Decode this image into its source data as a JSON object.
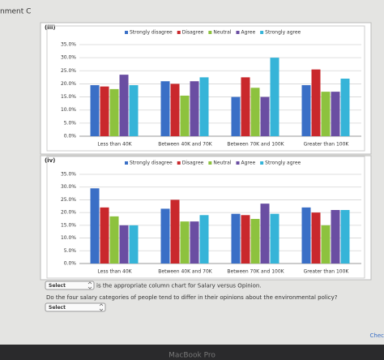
{
  "page": {
    "header": "nment C",
    "select_1": "Select",
    "question_1": "is the appropriate column chart for Salary versus Opinion.",
    "question_2": "Do the four salary categories of people tend to differ in their opinions about the environmental policy?",
    "select_2": "Select",
    "footer": "MacBook Pro",
    "corner_button": "Chec"
  },
  "chart_data": [
    {
      "type": "bar",
      "label": "(iii)",
      "categories": [
        "Less than 40K",
        "Between 40K and 70K",
        "Between 70K and 100K",
        "Greater than 100K"
      ],
      "series": [
        {
          "name": "Strongly disagree",
          "color": "#3a6fc6",
          "values": [
            19.5,
            21,
            15,
            19.5
          ]
        },
        {
          "name": "Disagree",
          "color": "#c9282c",
          "values": [
            19,
            20,
            22.5,
            25.5
          ]
        },
        {
          "name": "Neutral",
          "color": "#8dc23e",
          "values": [
            18,
            15.5,
            18.5,
            17
          ]
        },
        {
          "name": "Agree",
          "color": "#6a4ea2",
          "values": [
            23.5,
            21,
            15,
            17
          ]
        },
        {
          "name": "Strongly agree",
          "color": "#36b4d8",
          "values": [
            19.5,
            22.5,
            30,
            22
          ]
        }
      ],
      "ylim": [
        0,
        35
      ],
      "yticks": [
        {
          "value": 0,
          "label": "0.0%"
        },
        {
          "value": 5,
          "label": "5.0%"
        },
        {
          "value": 10,
          "label": "10.0%"
        },
        {
          "value": 15,
          "label": "15.0%"
        },
        {
          "value": 20,
          "label": "20.0%"
        },
        {
          "value": 25,
          "label": "25.0%"
        },
        {
          "value": 30,
          "label": "30.0%"
        },
        {
          "value": 35,
          "label": "35.0%"
        }
      ],
      "grid": true,
      "legend": "top"
    },
    {
      "type": "bar",
      "label": "(iv)",
      "categories": [
        "Less than 40K",
        "Between 40K and 70K",
        "Between 70K and 100K",
        "Greater than 100K"
      ],
      "series": [
        {
          "name": "Strongly disagree",
          "color": "#3a6fc6",
          "values": [
            29.5,
            21.5,
            19.5,
            22
          ]
        },
        {
          "name": "Disagree",
          "color": "#c9282c",
          "values": [
            22,
            25,
            19,
            20
          ]
        },
        {
          "name": "Neutral",
          "color": "#8dc23e",
          "values": [
            18.5,
            16.5,
            17.5,
            15
          ]
        },
        {
          "name": "Agree",
          "color": "#6a4ea2",
          "values": [
            15,
            16.5,
            23.5,
            21
          ]
        },
        {
          "name": "Strongly agree",
          "color": "#36b4d8",
          "values": [
            15,
            19,
            19.5,
            21
          ]
        }
      ],
      "ylim": [
        0,
        35
      ],
      "yticks": [
        {
          "value": 0,
          "label": "0.0%"
        },
        {
          "value": 5,
          "label": "5.0%"
        },
        {
          "value": 10,
          "label": "10.0%"
        },
        {
          "value": 15,
          "label": "15.0%"
        },
        {
          "value": 20,
          "label": "20.0%"
        },
        {
          "value": 25,
          "label": "25.0%"
        },
        {
          "value": 30,
          "label": "30.0%"
        },
        {
          "value": 35,
          "label": "35.0%"
        }
      ],
      "grid": true,
      "legend": "top"
    }
  ]
}
